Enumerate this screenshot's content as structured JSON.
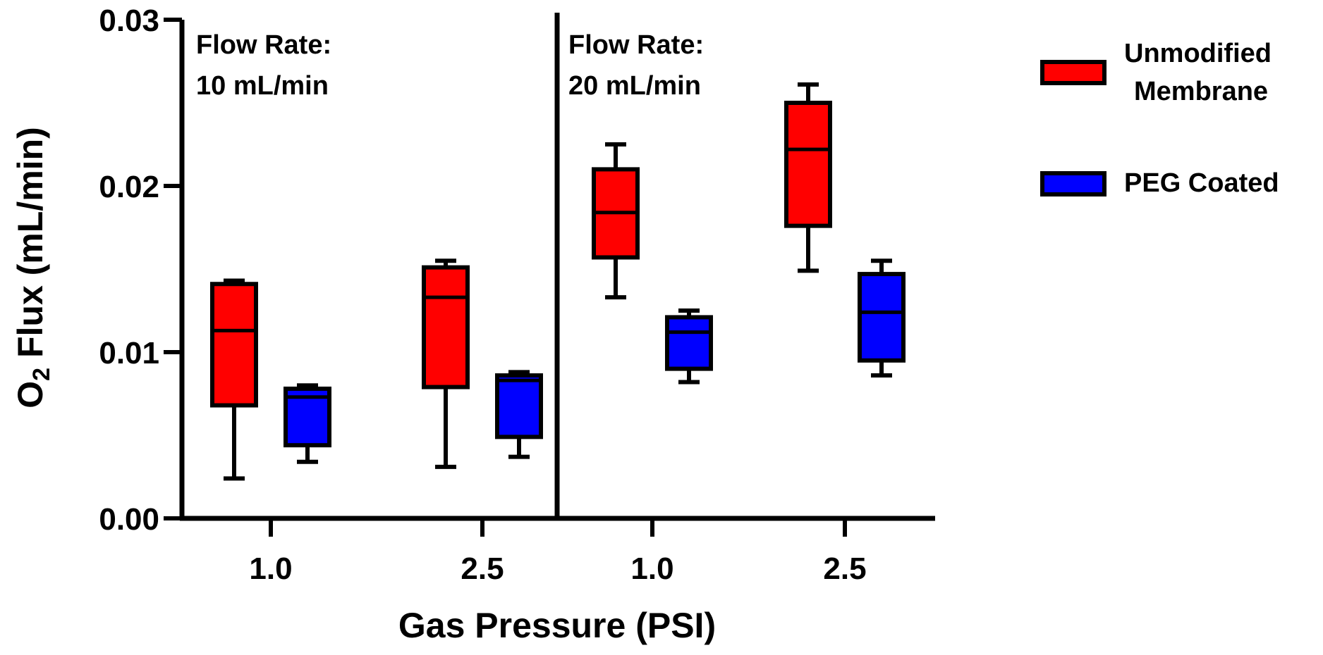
{
  "chart_data": {
    "type": "box",
    "ylabel_prefix": "O",
    "ylabel_subscript": "2",
    "ylabel_suffix": " Flux (mL/min)",
    "xlabel": "Gas Pressure (PSI)",
    "ylim": [
      0,
      0.03
    ],
    "yticks": [
      "0.00",
      "0.01",
      "0.02",
      "0.03"
    ],
    "ytick_values": [
      0,
      0.01,
      0.02,
      0.03
    ],
    "panels": [
      {
        "label_line1": "Flow Rate:",
        "label_line2": "10 mL/min",
        "categories": [
          "1.0",
          "2.5"
        ]
      },
      {
        "label_line1": "Flow Rate:",
        "label_line2": "20 mL/min",
        "categories": [
          "1.0",
          "2.5"
        ]
      }
    ],
    "legend": [
      {
        "line1": "Unmodified",
        "line2": "Membrane"
      },
      {
        "line1": "PEG Coated",
        "line2": ""
      }
    ],
    "series": [
      {
        "name": "Unmodified Membrane",
        "color": "#ff0000",
        "boxes": [
          {
            "panel": 0,
            "category": "1.0",
            "min": 0.0024,
            "q1": 0.0068,
            "median": 0.0113,
            "q3": 0.0141,
            "max": 0.0143
          },
          {
            "panel": 0,
            "category": "2.5",
            "min": 0.0031,
            "q1": 0.0079,
            "median": 0.0133,
            "q3": 0.0151,
            "max": 0.0155
          },
          {
            "panel": 1,
            "category": "1.0",
            "min": 0.0133,
            "q1": 0.0157,
            "median": 0.0184,
            "q3": 0.021,
            "max": 0.0225
          },
          {
            "panel": 1,
            "category": "2.5",
            "min": 0.0149,
            "q1": 0.0176,
            "median": 0.0222,
            "q3": 0.025,
            "max": 0.0261
          }
        ]
      },
      {
        "name": "PEG Coated",
        "color": "#0000ff",
        "boxes": [
          {
            "panel": 0,
            "category": "1.0",
            "min": 0.0034,
            "q1": 0.0044,
            "median": 0.0073,
            "q3": 0.0078,
            "max": 0.008
          },
          {
            "panel": 0,
            "category": "2.5",
            "min": 0.0037,
            "q1": 0.0049,
            "median": 0.0083,
            "q3": 0.0086,
            "max": 0.0088
          },
          {
            "panel": 1,
            "category": "1.0",
            "min": 0.0082,
            "q1": 0.009,
            "median": 0.0112,
            "q3": 0.0121,
            "max": 0.0125
          },
          {
            "panel": 1,
            "category": "2.5",
            "min": 0.0086,
            "q1": 0.0095,
            "median": 0.0124,
            "q3": 0.0147,
            "max": 0.0155
          }
        ]
      }
    ]
  }
}
